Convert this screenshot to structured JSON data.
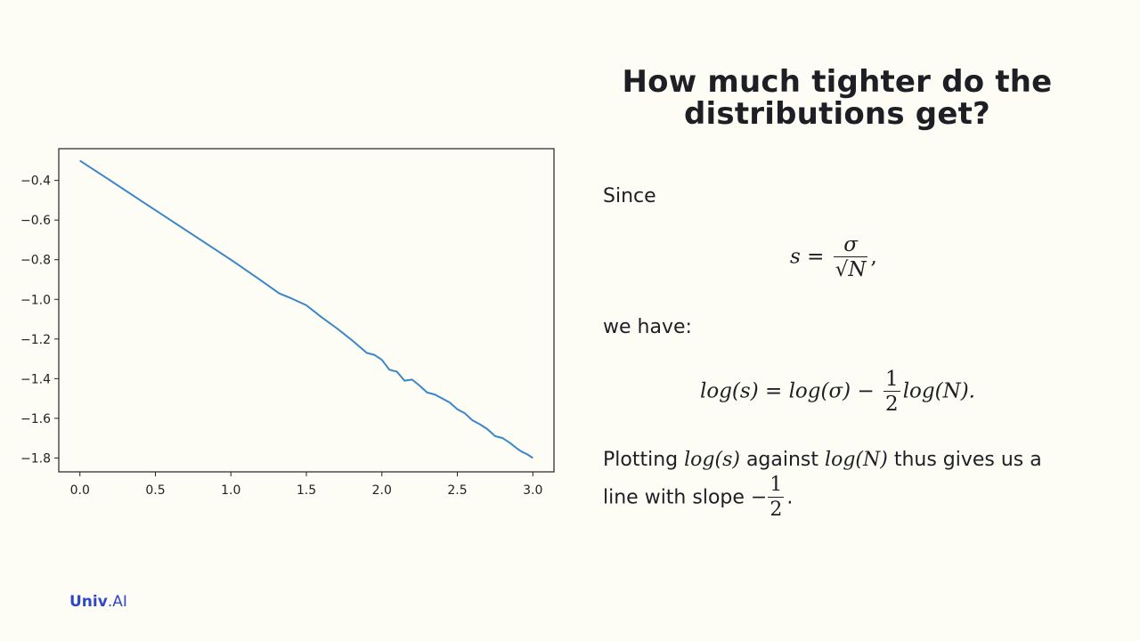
{
  "slide": {
    "title_line1": "How much tighter do the",
    "title_line2": "distributions get?",
    "since_label": "Since",
    "we_have_label": "we have:",
    "plotting_prefix": "Plotting",
    "against_word": "against",
    "thus_text": "thus gives us a",
    "line_with_slope": "line with slope",
    "brand_name": "Univ",
    "brand_dot": ".",
    "brand_suffix": "AI"
  },
  "equations": {
    "eq1_lhs": "s =",
    "eq1_num": "σ",
    "eq1_den": "√N",
    "eq1_tail": ",",
    "eq2_lhs": "log(s) = log(σ) −",
    "eq2_num": "1",
    "eq2_den": "2",
    "eq2_tail": "log(N).",
    "inline_log_s": "log(s)",
    "inline_log_n": "log(N)",
    "slope_sign": "−",
    "slope_num": "1",
    "slope_den": "2",
    "slope_tail": "."
  },
  "colors": {
    "background": "#fdfdf6",
    "line": "#3a86c8",
    "brand": "#2f48c9"
  },
  "chart_data": {
    "type": "line",
    "title": "",
    "xlabel": "",
    "ylabel": "",
    "xlim": [
      -0.14,
      3.14
    ],
    "ylim": [
      -1.87,
      -0.24
    ],
    "xticks": [
      0.0,
      0.5,
      1.0,
      1.5,
      2.0,
      2.5,
      3.0
    ],
    "xtick_labels": [
      "0.0",
      "0.5",
      "1.0",
      "1.5",
      "2.0",
      "2.5",
      "3.0"
    ],
    "yticks": [
      -0.4,
      -0.6,
      -0.8,
      -1.0,
      -1.2,
      -1.4,
      -1.6,
      -1.8
    ],
    "ytick_labels": [
      "−0.4",
      "−0.6",
      "−0.8",
      "−1.0",
      "−1.2",
      "−1.4",
      "−1.6",
      "−1.8"
    ],
    "grid": false,
    "series": [
      {
        "x": [
          0.0,
          0.2,
          0.4,
          0.6,
          0.8,
          1.0,
          1.2,
          1.32,
          1.4,
          1.5,
          1.6,
          1.7,
          1.8,
          1.9,
          1.95,
          2.0,
          2.05,
          2.1,
          2.15,
          2.2,
          2.25,
          2.3,
          2.35,
          2.4,
          2.45,
          2.5,
          2.55,
          2.6,
          2.65,
          2.7,
          2.75,
          2.8,
          2.85,
          2.9,
          2.93,
          2.96,
          3.0
        ],
        "y": [
          -0.3,
          -0.4,
          -0.5,
          -0.6,
          -0.7,
          -0.8,
          -0.905,
          -0.97,
          -0.995,
          -1.03,
          -1.09,
          -1.145,
          -1.205,
          -1.27,
          -1.28,
          -1.305,
          -1.355,
          -1.365,
          -1.41,
          -1.405,
          -1.435,
          -1.47,
          -1.48,
          -1.5,
          -1.52,
          -1.555,
          -1.575,
          -1.61,
          -1.63,
          -1.655,
          -1.69,
          -1.7,
          -1.725,
          -1.755,
          -1.77,
          -1.78,
          -1.8
        ]
      }
    ]
  }
}
